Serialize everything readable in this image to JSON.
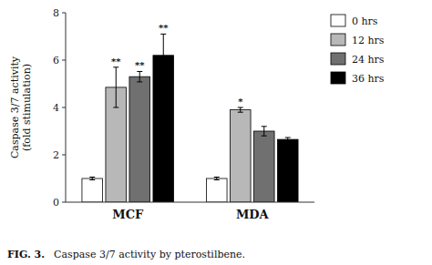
{
  "chart_data": {
    "type": "bar",
    "categories": [
      "MCF",
      "MDA"
    ],
    "series": [
      {
        "name": "0 hrs",
        "color": "#ffffff",
        "values": [
          1.0,
          1.0
        ],
        "errors": [
          0.06,
          0.06
        ],
        "annotations": [
          null,
          null
        ]
      },
      {
        "name": "12 hrs",
        "color": "#b8b8b8",
        "values": [
          4.85,
          3.9
        ],
        "errors": [
          0.85,
          0.1
        ],
        "annotations": [
          "**",
          "*"
        ]
      },
      {
        "name": "24 hrs",
        "color": "#707070",
        "values": [
          5.3,
          3.0
        ],
        "errors": [
          0.22,
          0.2
        ],
        "annotations": [
          "**",
          null
        ]
      },
      {
        "name": "36 hrs",
        "color": "#000000",
        "values": [
          6.2,
          2.65
        ],
        "errors": [
          0.9,
          0.08
        ],
        "annotations": [
          "**",
          null
        ]
      }
    ],
    "y_label": "Caspase 3/7 activity\n(fold stimulation)",
    "ylim": [
      0,
      8
    ],
    "yticks": [
      0,
      2,
      4,
      6,
      8
    ],
    "grid": false,
    "legend": "right",
    "caption_label": "FIG. 3.",
    "caption": "Caspase 3/7 activity by pterostilbene."
  }
}
